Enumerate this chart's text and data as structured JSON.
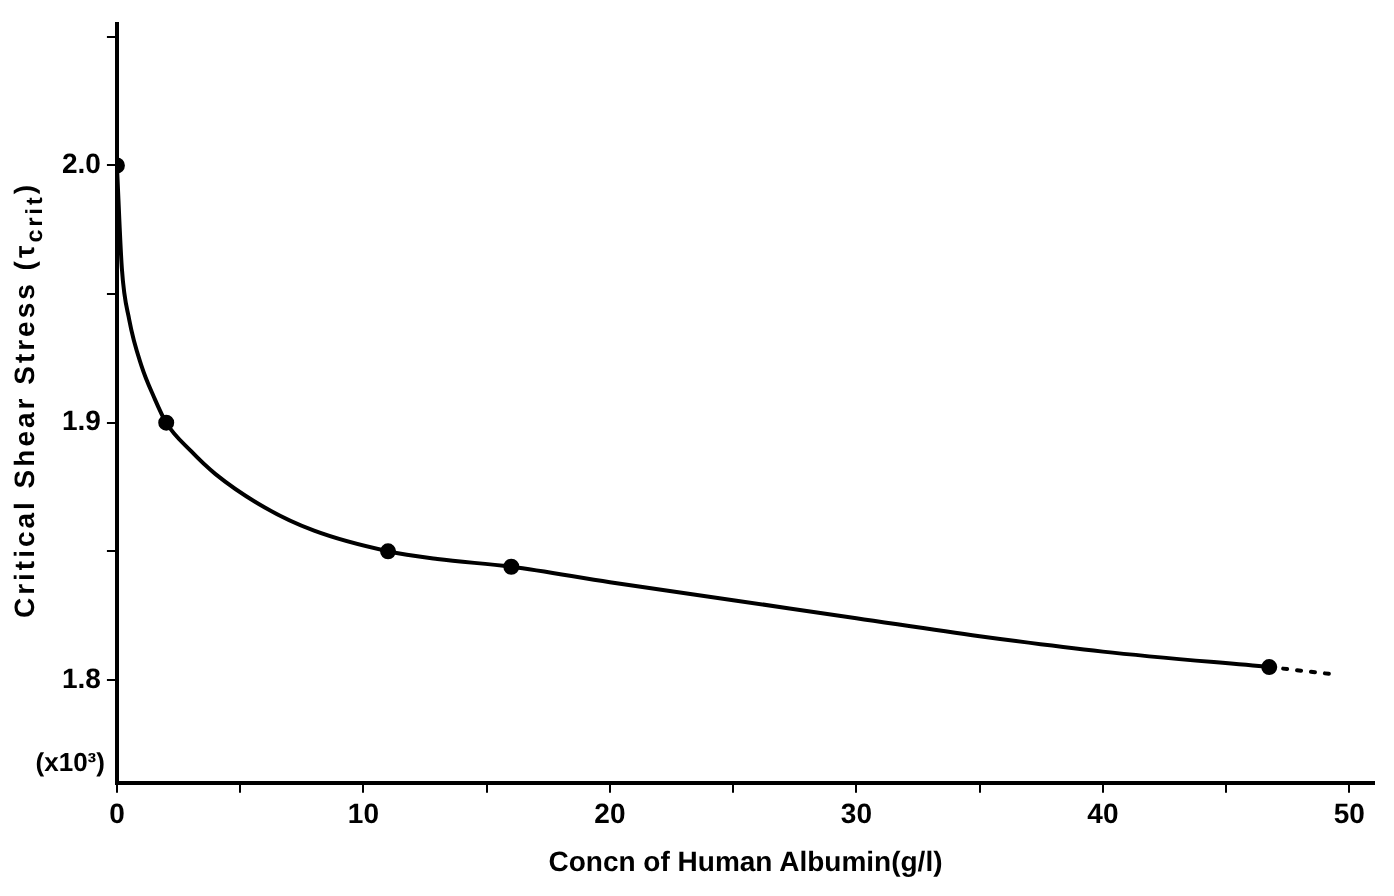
{
  "chart_data": {
    "type": "line",
    "xlabel": "Concn of Human Albumin(g/l)",
    "ylabel": "Critical Shear Stress (τ$_{crit}$)",
    "annotations": [
      "(x10³)"
    ],
    "xlim": [
      0,
      51
    ],
    "xticks": [
      0,
      {
        "value": 5,
        "label": null
      },
      10,
      {
        "value": 15,
        "label": null
      },
      20,
      {
        "value": 25,
        "label": null
      },
      30,
      {
        "value": 35,
        "label": null
      },
      40,
      {
        "value": 45,
        "label": null
      },
      50
    ],
    "ylim": [
      1.76,
      2.055
    ],
    "yticks": [
      1.8,
      {
        "value": 1.85,
        "label": null
      },
      1.9,
      {
        "value": 1.95,
        "label": null
      },
      {
        "value": 2.0,
        "label": "2.0"
      },
      {
        "value": 2.05,
        "label": null
      }
    ],
    "grid": false,
    "legend": false,
    "series": [
      {
        "color": "#000000",
        "marker": "none",
        "line_style": "solid",
        "x": [
          0,
          0.2,
          0.5,
          1,
          1.5,
          2,
          3,
          4,
          6,
          8,
          11,
          13,
          16,
          20,
          25,
          30,
          35,
          40,
          46.75
        ],
        "values": [
          2.0,
          1.96,
          1.94,
          1.922,
          1.91,
          1.9,
          1.889,
          1.88,
          1.867,
          1.858,
          1.85,
          1.847,
          1.844,
          1.838,
          1.831,
          1.824,
          1.817,
          1.811,
          1.805
        ]
      },
      {
        "type": "scatter",
        "color": "#000000",
        "marker": "circle",
        "x": [
          0,
          2,
          11,
          16,
          46.75
        ],
        "values": [
          2.0,
          1.9,
          1.85,
          1.844,
          1.805
        ]
      },
      {
        "type": "line",
        "color": "#000000",
        "marker": "none",
        "line_style": "dotted",
        "x": [
          46.75,
          49.5
        ],
        "values": [
          1.805,
          1.802
        ]
      }
    ]
  }
}
